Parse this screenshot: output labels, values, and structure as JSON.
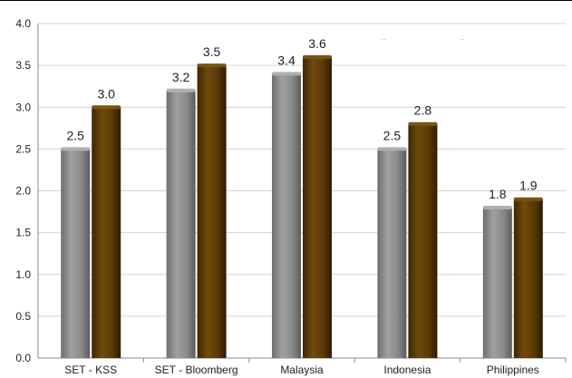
{
  "chart_data": {
    "type": "bar",
    "title": "",
    "xlabel": "",
    "ylabel": "",
    "categories": [
      "SET - KSS",
      "SET - Bloomberg",
      "Malaysia",
      "Indonesia",
      "Philippines"
    ],
    "series": [
      {
        "values": [
          2.5,
          3.2,
          3.4,
          2.5,
          1.8
        ],
        "labels": [
          "2.5",
          "3.2",
          "3.4",
          "2.5",
          "1.8"
        ],
        "color": "#8c8c8c"
      },
      {
        "values": [
          3.0,
          3.5,
          3.6,
          2.8,
          1.9
        ],
        "labels": [
          "3.0",
          "3.5",
          "3.6",
          "2.8",
          "1.9"
        ],
        "color": "#5a3a06"
      }
    ],
    "ylim": [
      0,
      4.0
    ],
    "yticks": [
      "0.0",
      "0.5",
      "1.0",
      "1.5",
      "2.0",
      "2.5",
      "3.0",
      "3.5",
      "4.0"
    ],
    "grid": true,
    "legend": "none",
    "legend_marks": [
      "...",
      "..."
    ]
  }
}
